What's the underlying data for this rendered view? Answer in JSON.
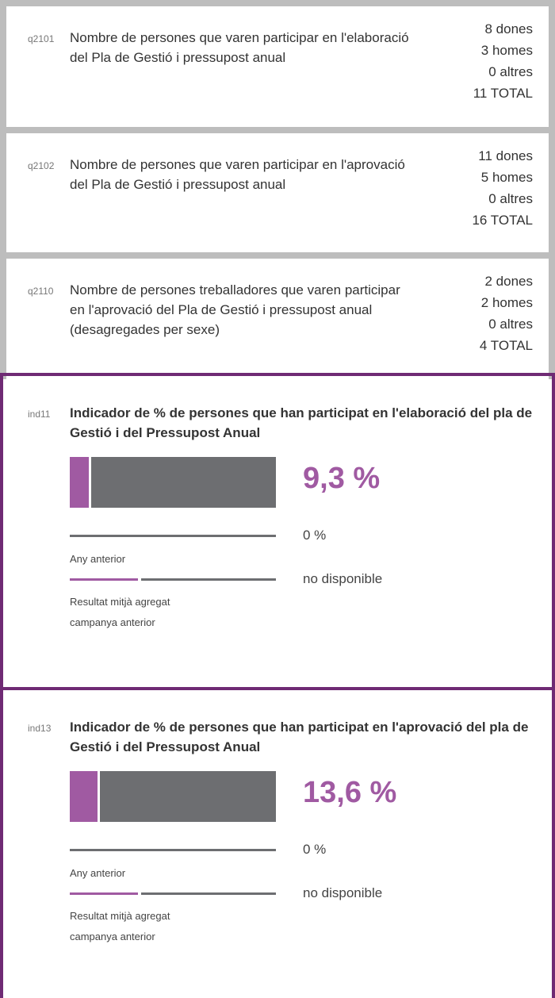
{
  "questions": [
    {
      "code": "q2101",
      "text": "Nombre de persones que varen participar en l'elaboració del Pla de Gestió i pressupost anual",
      "values": [
        "8 dones",
        "3 homes",
        "0 altres",
        "11 TOTAL"
      ]
    },
    {
      "code": "q2102",
      "text": "Nombre de persones que varen participar en l'aprovació del Pla de Gestió i pressupost anual",
      "values": [
        "11 dones",
        "5 homes",
        "0 altres",
        "16 TOTAL"
      ]
    },
    {
      "code": "q2110",
      "text": "Nombre de persones treballadores que varen participar en l'aprovació del Pla de Gestió i pressupost anual (desagregades per sexe)",
      "values": [
        "2 dones",
        "2 homes",
        "0 altres",
        "4 TOTAL"
      ]
    }
  ],
  "indicators": [
    {
      "code": "ind11",
      "title": "Indicador de % de persones que han participat en l'elaboració del pla de Gestió i del Pressupost Anual",
      "value": 9.3,
      "value_label": "9,3 %",
      "previous": {
        "label": "Any anterior",
        "value": 0,
        "value_label": "0 %"
      },
      "average": {
        "label": [
          "Resultat mitjà agregat",
          "campanya anterior"
        ],
        "value_label": "no disponible"
      }
    },
    {
      "code": "ind13",
      "title": "Indicador de % de persones que han participat en l'aprovació del pla de Gestió i del Pressupost Anual",
      "value": 13.6,
      "value_label": "13,6 %",
      "previous": {
        "label": "Any anterior",
        "value": 0,
        "value_label": "0 %"
      },
      "average": {
        "label": [
          "Resultat mitjà agregat",
          "campanya anterior"
        ],
        "value_label": "no disponible"
      }
    }
  ]
}
